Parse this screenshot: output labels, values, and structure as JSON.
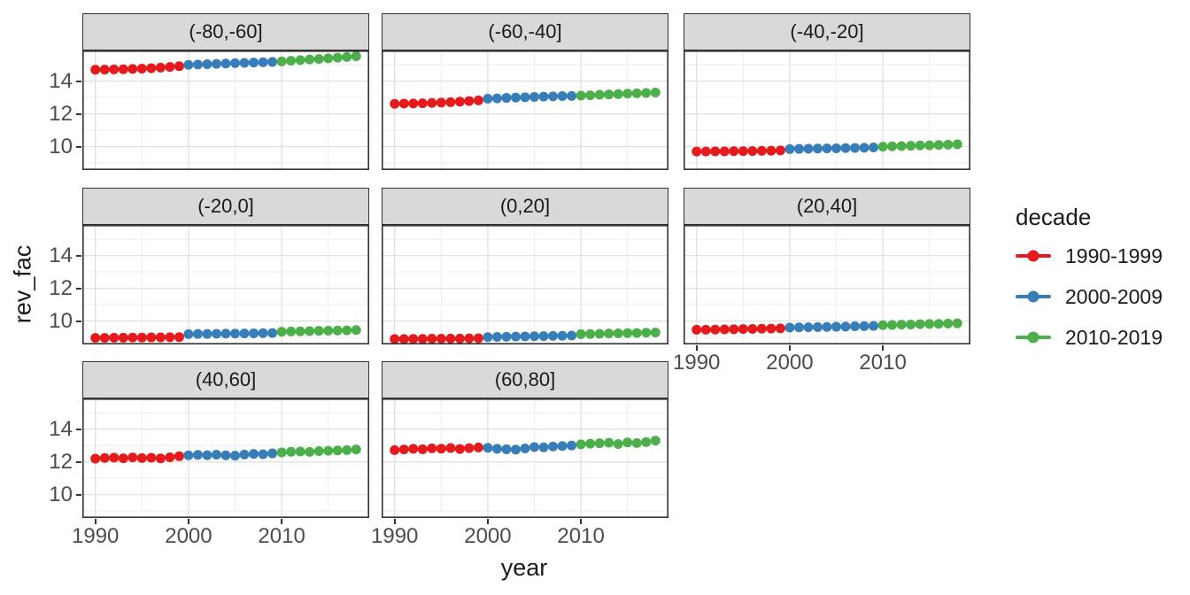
{
  "chart_data": {
    "type": "scatter",
    "title": "",
    "xlabel": "year",
    "ylabel": "rev_fac",
    "grid": "on",
    "x_ticks": [
      1990,
      2000,
      2010
    ],
    "x_minor_ticks": [
      1995,
      2005,
      2015
    ],
    "y_ticks": [
      10,
      12,
      14
    ],
    "y_minor_ticks": [
      9,
      11,
      13,
      15
    ],
    "x_range": [
      1988.6,
      2019.4
    ],
    "y_range": [
      8.57,
      15.88
    ],
    "x": [
      1990,
      1991,
      1992,
      1993,
      1994,
      1995,
      1996,
      1997,
      1998,
      1999,
      2000,
      2001,
      2002,
      2003,
      2004,
      2005,
      2006,
      2007,
      2008,
      2009,
      2010,
      2011,
      2012,
      2013,
      2014,
      2015,
      2016,
      2017,
      2018
    ],
    "facets": [
      {
        "label": "(-80,-60]",
        "values": [
          14.7,
          14.71,
          14.72,
          14.73,
          14.75,
          14.77,
          14.8,
          14.83,
          14.87,
          14.92,
          15.0,
          15.02,
          15.04,
          15.06,
          15.08,
          15.1,
          15.12,
          15.14,
          15.16,
          15.18,
          15.21,
          15.25,
          15.29,
          15.33,
          15.36,
          15.4,
          15.44,
          15.48,
          15.53
        ]
      },
      {
        "label": "(-60,-40]",
        "values": [
          12.62,
          12.63,
          12.64,
          12.65,
          12.67,
          12.69,
          12.72,
          12.75,
          12.79,
          12.83,
          12.93,
          12.95,
          12.98,
          13.0,
          13.02,
          13.04,
          13.06,
          13.07,
          13.09,
          13.1,
          13.12,
          13.14,
          13.17,
          13.19,
          13.21,
          13.24,
          13.26,
          13.28,
          13.31
        ]
      },
      {
        "label": "(-40,-20]",
        "values": [
          9.7,
          9.7,
          9.71,
          9.71,
          9.72,
          9.72,
          9.73,
          9.74,
          9.75,
          9.77,
          9.85,
          9.86,
          9.87,
          9.88,
          9.89,
          9.9,
          9.91,
          9.92,
          9.93,
          9.95,
          10.0,
          10.02,
          10.03,
          10.05,
          10.07,
          10.08,
          10.1,
          10.12,
          10.14
        ]
      },
      {
        "label": "(-20,0]",
        "values": [
          8.97,
          8.97,
          8.98,
          8.98,
          8.99,
          8.99,
          9.0,
          9.0,
          9.01,
          9.02,
          9.2,
          9.21,
          9.21,
          9.22,
          9.23,
          9.23,
          9.24,
          9.25,
          9.26,
          9.27,
          9.35,
          9.36,
          9.37,
          9.38,
          9.4,
          9.41,
          9.42,
          9.43,
          9.45
        ]
      },
      {
        "label": "(0,20]",
        "values": [
          8.9,
          8.9,
          8.91,
          8.91,
          8.92,
          8.92,
          8.93,
          8.93,
          8.94,
          8.95,
          9.02,
          9.03,
          9.04,
          9.05,
          9.06,
          9.07,
          9.08,
          9.09,
          9.1,
          9.11,
          9.2,
          9.21,
          9.22,
          9.24,
          9.25,
          9.26,
          9.27,
          9.29,
          9.3
        ]
      },
      {
        "label": "(20,40]",
        "values": [
          9.47,
          9.47,
          9.48,
          9.49,
          9.5,
          9.51,
          9.52,
          9.53,
          9.54,
          9.55,
          9.6,
          9.61,
          9.62,
          9.63,
          9.64,
          9.65,
          9.66,
          9.68,
          9.69,
          9.7,
          9.75,
          9.76,
          9.78,
          9.79,
          9.81,
          9.82,
          9.83,
          9.85,
          9.86
        ]
      },
      {
        "label": "(40,60]",
        "values": [
          12.2,
          12.24,
          12.26,
          12.22,
          12.27,
          12.23,
          12.25,
          12.21,
          12.28,
          12.35,
          12.4,
          12.43,
          12.41,
          12.44,
          12.4,
          12.38,
          12.45,
          12.49,
          12.47,
          12.52,
          12.58,
          12.62,
          12.64,
          12.61,
          12.66,
          12.68,
          12.7,
          12.72,
          12.76
        ]
      },
      {
        "label": "(60,80]",
        "values": [
          12.72,
          12.76,
          12.8,
          12.77,
          12.83,
          12.81,
          12.85,
          12.79,
          12.84,
          12.88,
          12.86,
          12.8,
          12.77,
          12.75,
          12.82,
          12.91,
          12.89,
          12.94,
          12.97,
          13.0,
          13.07,
          13.11,
          13.14,
          13.17,
          13.09,
          13.19,
          13.15,
          13.21,
          13.3
        ]
      }
    ],
    "legend": {
      "title": "decade",
      "position": "right",
      "entries": [
        {
          "label": "1990-1999",
          "color": "#E41A1C",
          "year_min": 1990,
          "year_max": 1999
        },
        {
          "label": "2000-2009",
          "color": "#377EB8",
          "year_min": 2000,
          "year_max": 2009
        },
        {
          "label": "2010-2019",
          "color": "#4DAF4A",
          "year_min": 2010,
          "year_max": 2019
        }
      ]
    },
    "style_colors": {
      "strip_fill": "#D9D9D9",
      "border": "#333333",
      "grid_major": "#E2E2E2",
      "grid_minor": "#EDEDED",
      "tick_text": "#4d4d4d",
      "title_text": "#1a1a1a",
      "panel_fill": "#ffffff"
    }
  }
}
